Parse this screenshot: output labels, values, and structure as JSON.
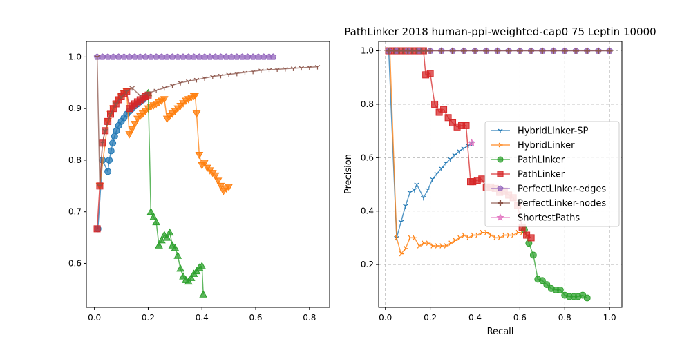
{
  "chart_data": [
    {
      "type": "line",
      "title": "",
      "xlabel": "",
      "ylabel": "",
      "xlim": [
        -0.03,
        0.875
      ],
      "ylim": [
        0.515,
        1.03
      ],
      "xticks": [
        0.0,
        0.2,
        0.4,
        0.6,
        0.8
      ],
      "yticks": [
        0.6,
        0.7,
        0.8,
        0.9,
        1.0
      ],
      "xtick_labels": [
        "0.0",
        "0.2",
        "0.4",
        "0.6",
        "0.8"
      ],
      "ytick_labels": [
        "0.6",
        "0.7",
        "0.8",
        "0.9",
        "1.0"
      ],
      "grid": false,
      "series": [
        {
          "name": "",
          "color": "#1f77b4",
          "marker": "circle",
          "x": [
            0.013,
            0.03,
            0.05,
            0.055,
            0.062,
            0.068,
            0.075,
            0.082,
            0.09,
            0.1,
            0.11,
            0.12,
            0.13,
            0.14,
            0.15,
            0.16,
            0.17,
            0.18,
            0.19
          ],
          "y": [
            0.667,
            0.8,
            0.778,
            0.8,
            0.818,
            0.833,
            0.846,
            0.857,
            0.867,
            0.875,
            0.882,
            0.889,
            0.895,
            0.9,
            0.905,
            0.909,
            0.913,
            0.917,
            0.922
          ]
        },
        {
          "name": "",
          "color": "#ff7f0e",
          "marker": "triangle-down",
          "x": [
            0.02,
            0.05,
            0.06,
            0.07,
            0.08,
            0.09,
            0.1,
            0.11,
            0.12,
            0.13,
            0.14,
            0.15,
            0.16,
            0.17,
            0.18,
            0.19,
            0.2,
            0.21,
            0.22,
            0.23,
            0.24,
            0.25,
            0.26,
            0.27,
            0.28,
            0.29,
            0.3,
            0.31,
            0.32,
            0.33,
            0.34,
            0.35,
            0.36,
            0.37,
            0.375,
            0.38,
            0.39,
            0.4,
            0.41,
            0.42,
            0.43,
            0.44,
            0.45,
            0.46,
            0.47,
            0.48,
            0.49,
            0.5
          ],
          "y": [
            0.75,
            0.875,
            0.889,
            0.9,
            0.909,
            0.917,
            0.923,
            0.929,
            0.933,
            0.85,
            0.86,
            0.87,
            0.88,
            0.885,
            0.89,
            0.895,
            0.9,
            0.903,
            0.906,
            0.909,
            0.912,
            0.915,
            0.918,
            0.88,
            0.885,
            0.89,
            0.895,
            0.9,
            0.905,
            0.91,
            0.915,
            0.918,
            0.921,
            0.924,
            0.925,
            0.89,
            0.81,
            0.79,
            0.795,
            0.785,
            0.78,
            0.775,
            0.77,
            0.76,
            0.75,
            0.74,
            0.745,
            0.748
          ]
        },
        {
          "name": "",
          "color": "#2ca02c",
          "marker": "triangle-up",
          "x": [
            0.2,
            0.21,
            0.22,
            0.23,
            0.24,
            0.25,
            0.26,
            0.27,
            0.28,
            0.29,
            0.3,
            0.31,
            0.32,
            0.33,
            0.34,
            0.35,
            0.36,
            0.37,
            0.38,
            0.39,
            0.4,
            0.405
          ],
          "y": [
            0.93,
            0.7,
            0.69,
            0.68,
            0.635,
            0.645,
            0.655,
            0.65,
            0.66,
            0.635,
            0.63,
            0.615,
            0.59,
            0.575,
            0.568,
            0.565,
            0.572,
            0.58,
            0.585,
            0.592,
            0.595,
            0.54
          ]
        },
        {
          "name": "",
          "color": "#d62728",
          "marker": "square",
          "x": [
            0.01,
            0.02,
            0.03,
            0.04,
            0.05,
            0.06,
            0.07,
            0.08,
            0.09,
            0.1,
            0.11,
            0.12,
            0.13,
            0.14,
            0.15,
            0.16,
            0.17,
            0.18,
            0.19,
            0.2
          ],
          "y": [
            0.667,
            0.75,
            0.833,
            0.857,
            0.875,
            0.889,
            0.9,
            0.909,
            0.917,
            0.923,
            0.929,
            0.933,
            0.9,
            0.905,
            0.909,
            0.913,
            0.917,
            0.92,
            0.923,
            0.926
          ]
        },
        {
          "name": "",
          "color": "#9467bd",
          "marker": "pentagon",
          "x": [
            0.01,
            0.03,
            0.05,
            0.07,
            0.09,
            0.11,
            0.13,
            0.15,
            0.17,
            0.19,
            0.21,
            0.23,
            0.25,
            0.27,
            0.29,
            0.31,
            0.33,
            0.35,
            0.37,
            0.39,
            0.41,
            0.43,
            0.45,
            0.47,
            0.49,
            0.51,
            0.53,
            0.55,
            0.57,
            0.59,
            0.61,
            0.63,
            0.65,
            0.665
          ],
          "y": [
            1.0,
            1.0,
            1.0,
            1.0,
            1.0,
            1.0,
            1.0,
            1.0,
            1.0,
            1.0,
            1.0,
            1.0,
            1.0,
            1.0,
            1.0,
            1.0,
            1.0,
            1.0,
            1.0,
            1.0,
            1.0,
            1.0,
            1.0,
            1.0,
            1.0,
            1.0,
            1.0,
            1.0,
            1.0,
            1.0,
            1.0,
            1.0,
            1.0,
            1.0
          ]
        },
        {
          "name": "",
          "color": "#8c564b",
          "marker": "tri-down",
          "x": [
            0.01,
            0.02,
            0.03,
            0.04,
            0.06,
            0.08,
            0.1,
            0.12,
            0.14,
            0.17,
            0.2,
            0.23,
            0.26,
            0.29,
            0.32,
            0.35,
            0.38,
            0.41,
            0.44,
            0.47,
            0.5,
            0.53,
            0.56,
            0.59,
            0.62,
            0.65,
            0.68,
            0.71,
            0.74,
            0.77,
            0.8,
            0.83
          ],
          "y": [
            1.0,
            0.75,
            0.833,
            0.857,
            0.889,
            0.909,
            0.923,
            0.933,
            0.94,
            0.925,
            0.93,
            0.935,
            0.94,
            0.945,
            0.95,
            0.953,
            0.956,
            0.959,
            0.962,
            0.964,
            0.966,
            0.968,
            0.97,
            0.972,
            0.974,
            0.975,
            0.976,
            0.977,
            0.978,
            0.979,
            0.98,
            0.981
          ]
        }
      ]
    },
    {
      "type": "line",
      "title": "PathLinker 2018 human-ppi-weighted-cap0 75 Leptin 10000",
      "xlabel": "Recall",
      "ylabel": "Precision",
      "xlim": [
        -0.03,
        1.055
      ],
      "ylim": [
        0.04,
        1.035
      ],
      "xticks": [
        0.0,
        0.2,
        0.4,
        0.6,
        0.8,
        1.0
      ],
      "yticks": [
        0.2,
        0.4,
        0.6,
        0.8,
        1.0
      ],
      "xtick_labels": [
        "0.0",
        "0.2",
        "0.4",
        "0.6",
        "0.8",
        "1.0"
      ],
      "ytick_labels": [
        "0.2",
        "0.4",
        "0.6",
        "0.8",
        "1.0"
      ],
      "grid": true,
      "legend_position": "center-right",
      "series": [
        {
          "name": "HybridLinker-SP",
          "color": "#1f77b4",
          "marker": "tri-down",
          "x": [
            0.015,
            0.05,
            0.07,
            0.09,
            0.11,
            0.13,
            0.14,
            0.17,
            0.19,
            0.21,
            0.23,
            0.25,
            0.27,
            0.29,
            0.31,
            0.33,
            0.35,
            0.37,
            0.385
          ],
          "y": [
            1.0,
            0.3,
            0.36,
            0.42,
            0.47,
            0.48,
            0.5,
            0.45,
            0.48,
            0.52,
            0.54,
            0.56,
            0.58,
            0.595,
            0.61,
            0.625,
            0.635,
            0.645,
            0.655
          ]
        },
        {
          "name": "HybridLinker",
          "color": "#ff7f0e",
          "marker": "tri-right",
          "x": [
            0.02,
            0.05,
            0.07,
            0.09,
            0.11,
            0.13,
            0.15,
            0.17,
            0.19,
            0.21,
            0.23,
            0.25,
            0.27,
            0.29,
            0.31,
            0.33,
            0.35,
            0.37,
            0.39,
            0.41,
            0.43,
            0.45,
            0.47,
            0.49,
            0.51,
            0.53,
            0.55,
            0.57,
            0.59,
            0.61,
            0.63
          ],
          "y": [
            1.0,
            0.3,
            0.24,
            0.26,
            0.3,
            0.3,
            0.27,
            0.28,
            0.28,
            0.27,
            0.27,
            0.27,
            0.27,
            0.28,
            0.29,
            0.3,
            0.31,
            0.3,
            0.31,
            0.31,
            0.32,
            0.32,
            0.31,
            0.3,
            0.3,
            0.31,
            0.31,
            0.31,
            0.32,
            0.32,
            0.31
          ]
        },
        {
          "name": "PathLinker",
          "color": "#2ca02c",
          "marker": "circle",
          "x": [
            0.62,
            0.64,
            0.66,
            0.68,
            0.7,
            0.72,
            0.74,
            0.76,
            0.78,
            0.8,
            0.82,
            0.84,
            0.86,
            0.88,
            0.9
          ],
          "y": [
            0.33,
            0.28,
            0.235,
            0.145,
            0.14,
            0.125,
            0.11,
            0.105,
            0.105,
            0.085,
            0.08,
            0.08,
            0.08,
            0.085,
            0.075
          ]
        },
        {
          "name": "PathLinker",
          "color": "#d62728",
          "marker": "square",
          "x": [
            0.015,
            0.03,
            0.05,
            0.07,
            0.09,
            0.11,
            0.13,
            0.15,
            0.17,
            0.18,
            0.2,
            0.22,
            0.24,
            0.26,
            0.28,
            0.3,
            0.32,
            0.34,
            0.36,
            0.38,
            0.39,
            0.41,
            0.43,
            0.45,
            0.47,
            0.49,
            0.51,
            0.53,
            0.55,
            0.57,
            0.59,
            0.61,
            0.63,
            0.65
          ],
          "y": [
            1.0,
            1.0,
            1.0,
            1.0,
            1.0,
            1.0,
            1.0,
            1.0,
            1.0,
            0.91,
            0.915,
            0.8,
            0.77,
            0.78,
            0.75,
            0.73,
            0.715,
            0.72,
            0.72,
            0.51,
            0.51,
            0.515,
            0.52,
            0.49,
            0.49,
            0.485,
            0.47,
            0.475,
            0.46,
            0.45,
            0.42,
            0.34,
            0.31,
            0.3
          ]
        },
        {
          "name": "PerfectLinker-edges",
          "color": "#9467bd",
          "marker": "pentagon",
          "x": [
            0.015,
            0.05,
            0.1,
            0.15,
            0.2,
            0.25,
            0.3,
            0.35,
            0.4,
            0.45,
            0.5,
            0.55,
            0.6,
            0.65,
            0.7,
            0.75,
            0.8,
            0.85,
            0.9,
            0.95,
            1.0
          ],
          "y": [
            1.0,
            1.0,
            1.0,
            1.0,
            1.0,
            1.0,
            1.0,
            1.0,
            1.0,
            1.0,
            1.0,
            1.0,
            1.0,
            1.0,
            1.0,
            1.0,
            1.0,
            1.0,
            1.0,
            1.0,
            1.0
          ]
        },
        {
          "name": "PerfectLinker-nodes",
          "color": "#8c564b",
          "marker": "plus",
          "x": [
            0.015,
            0.04,
            0.06,
            0.08,
            0.1,
            0.12,
            0.14,
            0.16,
            0.18,
            0.2,
            0.25,
            0.3,
            0.35,
            0.4,
            0.45,
            0.5,
            0.55,
            0.6,
            0.65,
            0.7,
            0.75,
            0.8,
            0.85,
            0.9,
            0.95,
            1.0
          ],
          "y": [
            1.0,
            1.0,
            1.0,
            1.0,
            1.0,
            1.0,
            1.0,
            1.0,
            1.0,
            1.0,
            1.0,
            1.0,
            1.0,
            1.0,
            1.0,
            1.0,
            1.0,
            1.0,
            1.0,
            1.0,
            1.0,
            1.0,
            1.0,
            1.0,
            1.0,
            1.0
          ]
        },
        {
          "name": "ShortestPaths",
          "color": "#e377c2",
          "marker": "star",
          "x": [
            0.385
          ],
          "y": [
            0.655
          ]
        }
      ]
    }
  ]
}
